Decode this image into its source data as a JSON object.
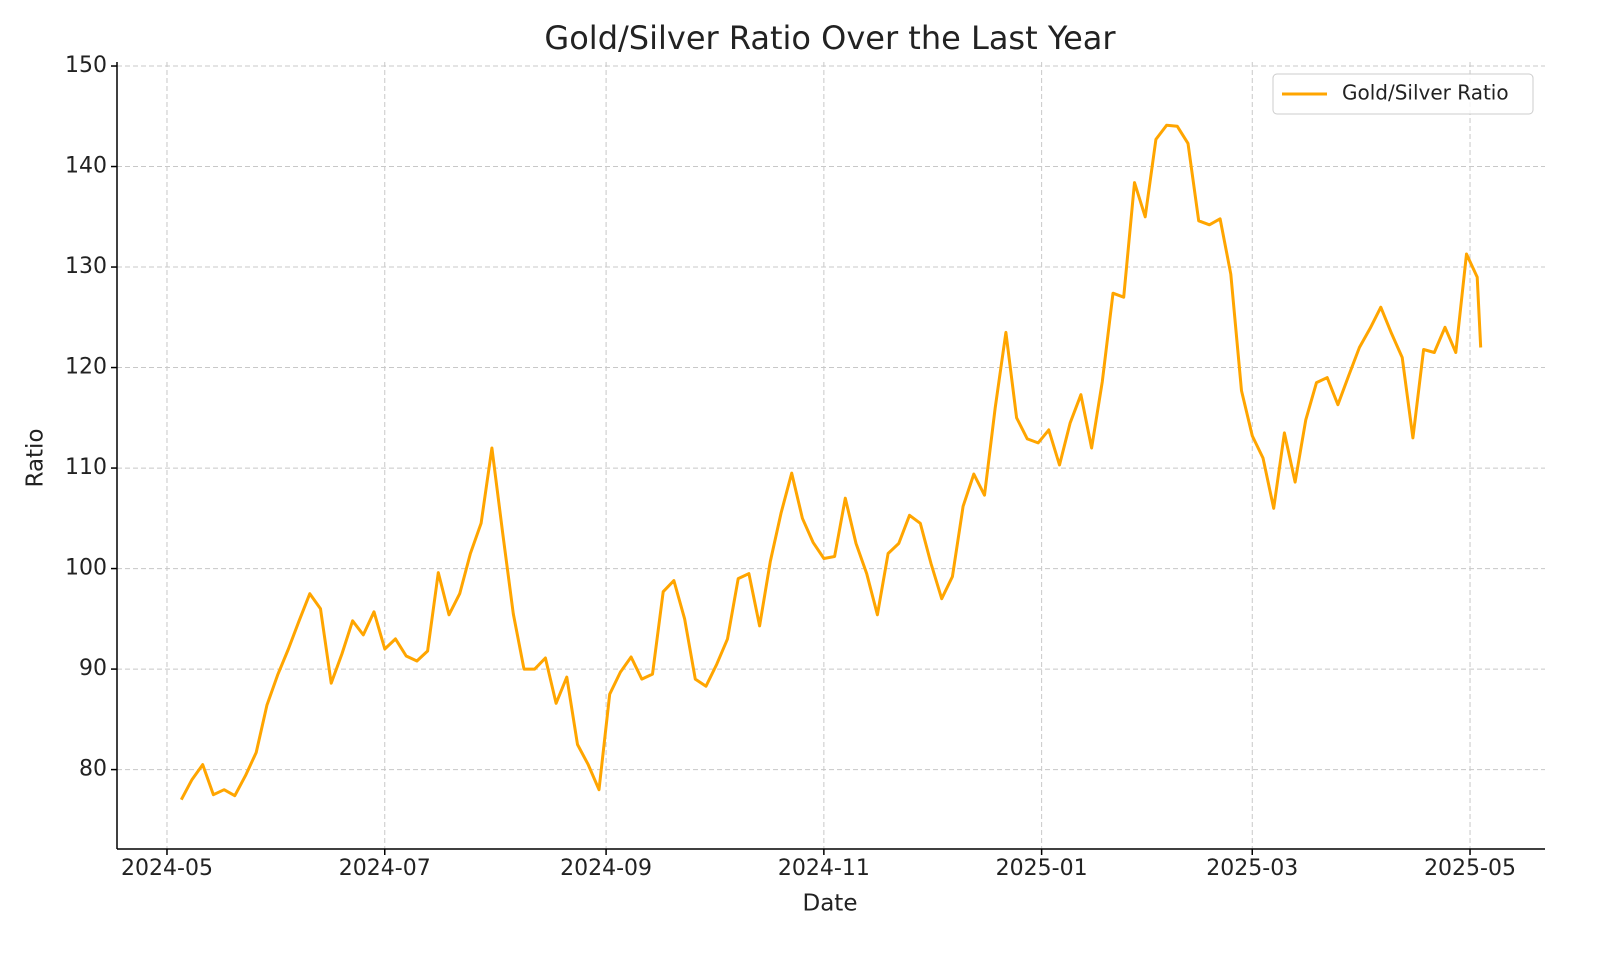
{
  "chart_data": {
    "type": "line",
    "title": "Gold/Silver Ratio Over the Last Year",
    "xlabel": "Date",
    "ylabel": "Ratio",
    "x": [
      "2024-05-05",
      "2024-05-08",
      "2024-05-11",
      "2024-05-14",
      "2024-05-17",
      "2024-05-20",
      "2024-05-23",
      "2024-05-26",
      "2024-05-29",
      "2024-06-01",
      "2024-06-04",
      "2024-06-07",
      "2024-06-10",
      "2024-06-13",
      "2024-06-16",
      "2024-06-19",
      "2024-06-22",
      "2024-06-25",
      "2024-06-28",
      "2024-07-01",
      "2024-07-04",
      "2024-07-07",
      "2024-07-10",
      "2024-07-13",
      "2024-07-16",
      "2024-07-19",
      "2024-07-22",
      "2024-07-25",
      "2024-07-28",
      "2024-07-31",
      "2024-08-03",
      "2024-08-06",
      "2024-08-09",
      "2024-08-12",
      "2024-08-15",
      "2024-08-18",
      "2024-08-21",
      "2024-08-24",
      "2024-08-27",
      "2024-08-30",
      "2024-09-02",
      "2024-09-05",
      "2024-09-08",
      "2024-09-11",
      "2024-09-14",
      "2024-09-17",
      "2024-09-20",
      "2024-09-23",
      "2024-09-26",
      "2024-09-29",
      "2024-10-02",
      "2024-10-05",
      "2024-10-08",
      "2024-10-11",
      "2024-10-14",
      "2024-10-17",
      "2024-10-20",
      "2024-10-23",
      "2024-10-26",
      "2024-10-29",
      "2024-11-01",
      "2024-11-04",
      "2024-11-07",
      "2024-11-10",
      "2024-11-13",
      "2024-11-16",
      "2024-11-19",
      "2024-11-22",
      "2024-11-25",
      "2024-11-28",
      "2024-12-01",
      "2024-12-04",
      "2024-12-07",
      "2024-12-10",
      "2024-12-13",
      "2024-12-16",
      "2024-12-19",
      "2024-12-22",
      "2024-12-25",
      "2024-12-28",
      "2024-12-31",
      "2025-01-03",
      "2025-01-06",
      "2025-01-09",
      "2025-01-12",
      "2025-01-15",
      "2025-01-18",
      "2025-01-21",
      "2025-01-24",
      "2025-01-27",
      "2025-01-30",
      "2025-02-02",
      "2025-02-05",
      "2025-02-08",
      "2025-02-11",
      "2025-02-14",
      "2025-02-17",
      "2025-02-20",
      "2025-02-23",
      "2025-02-26",
      "2025-03-01",
      "2025-03-04",
      "2025-03-07",
      "2025-03-10",
      "2025-03-13",
      "2025-03-16",
      "2025-03-19",
      "2025-03-22",
      "2025-03-25",
      "2025-03-28",
      "2025-03-31",
      "2025-04-03",
      "2025-04-06",
      "2025-04-09",
      "2025-04-12",
      "2025-04-15",
      "2025-04-18",
      "2025-04-21",
      "2025-04-24",
      "2025-04-27",
      "2025-04-30",
      "2025-05-03",
      "2025-05-04"
    ],
    "series": [
      {
        "name": "Gold/Silver Ratio",
        "color": "#ffa500",
        "values": [
          77.0,
          79,
          80.5,
          77.5,
          78,
          77.4,
          79.4,
          81.7,
          86.4,
          89.4,
          92,
          94.8,
          97.5,
          96,
          88.6,
          91.5,
          94.8,
          93.4,
          95.7,
          92,
          93,
          91.3,
          90.8,
          91.8,
          99.6,
          95.4,
          97.5,
          101.5,
          104.5,
          112,
          103.6,
          95.5,
          90,
          90,
          91.1,
          86.6,
          89.2,
          82.5,
          80.5,
          78,
          87.5,
          89.7,
          91.2,
          89,
          89.5,
          97.7,
          98.8,
          95,
          89,
          88.3,
          90.5,
          93,
          99,
          99.5,
          94.3,
          100.7,
          105.5,
          109.5,
          105,
          102.6,
          101,
          101.2,
          107,
          102.5,
          99.5,
          95.4,
          101.5,
          102.5,
          105.3,
          104.5,
          100.5,
          97,
          99.2,
          106.2,
          109.4,
          107.3,
          116,
          123.5,
          115,
          112.9,
          112.5,
          113.8,
          110.3,
          114.5,
          117.3,
          112,
          118.6,
          127.4,
          127,
          138.4,
          135,
          142.7,
          144.1,
          144,
          142.3,
          134.6,
          134.2,
          134.8,
          129.3,
          117.7,
          113.2,
          111,
          106,
          113.5,
          108.6,
          114.8,
          118.5,
          119,
          116.3,
          119.2,
          122,
          123.9,
          126,
          123.4,
          121,
          113,
          121.8,
          121.5,
          124,
          121.5,
          131.3,
          129,
          122
        ]
      }
    ],
    "xlim": [
      "2024-04-17",
      "2025-05-22"
    ],
    "xticks": [
      {
        "value": "2024-05-01",
        "label": "2024-05"
      },
      {
        "value": "2024-07-01",
        "label": "2024-07"
      },
      {
        "value": "2024-09-01",
        "label": "2024-09"
      },
      {
        "value": "2024-11-01",
        "label": "2024-11"
      },
      {
        "value": "2025-01-01",
        "label": "2025-01"
      },
      {
        "value": "2025-03-01",
        "label": "2025-03"
      },
      {
        "value": "2025-05-01",
        "label": "2025-05"
      }
    ],
    "ylim": [
      72.1,
      150.4
    ],
    "yticks": [
      80,
      90,
      100,
      110,
      120,
      130,
      140,
      150
    ],
    "grid": true,
    "legend": "upper right"
  }
}
